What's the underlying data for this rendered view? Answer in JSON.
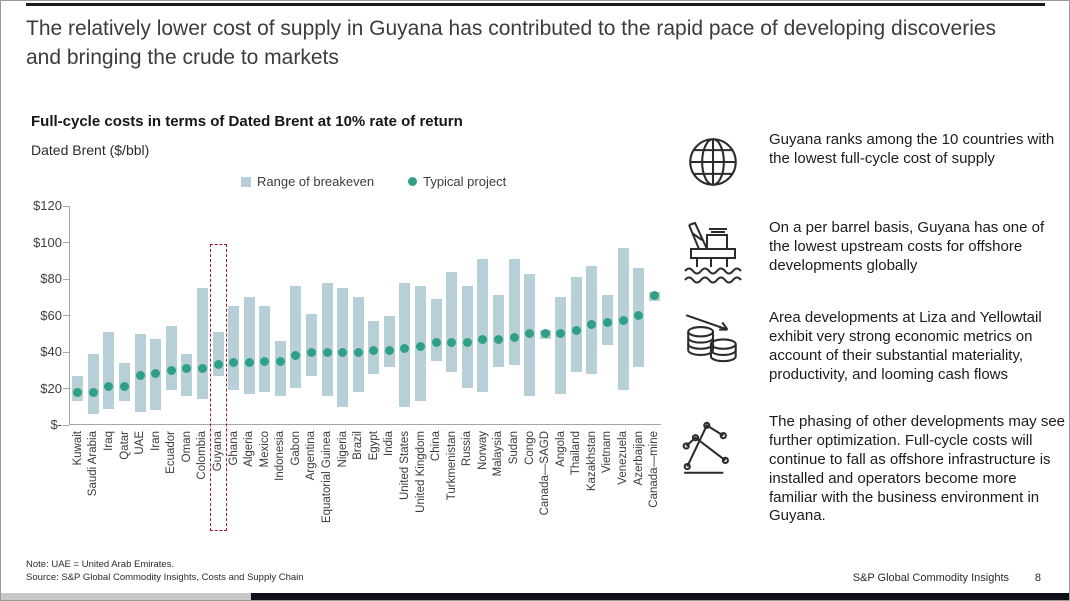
{
  "slide": {
    "title": "The relatively lower cost of supply in Guyana has contributed to the rapid pace of developing discoveries and bringing the crude to markets",
    "footer_note_1": "Note: UAE = United Arab Emirates.",
    "footer_note_2": "Source: S&P Global Commodity Insights, Costs and Supply Chain",
    "footer_brand": "S&P Global Commodity Insights",
    "page_number": "8"
  },
  "chart": {
    "heading": "Full-cycle costs in terms of Dated Brent at 10% rate of return",
    "unit_label": "Dated Brent ($/bbl)",
    "legend": [
      {
        "label": "Range of breakeven",
        "marker": "square",
        "color": "#b7d0d7"
      },
      {
        "label": "Typical project",
        "marker": "dot",
        "color": "#2fa086"
      }
    ]
  },
  "chart_data": {
    "type": "bar",
    "title": "Full-cycle costs in terms of Dated Brent at 10% rate of return",
    "xlabel": "",
    "ylabel": "Dated Brent ($/bbl)",
    "ylim": [
      0,
      120
    ],
    "ytick_values": [
      0,
      20,
      40,
      60,
      80,
      100,
      120
    ],
    "ytick_labels": [
      "$-",
      "$20",
      "$40",
      "$60",
      "$80",
      "$100",
      "$120"
    ],
    "grid": false,
    "legend_position": "top",
    "highlight_category": "Guyana",
    "colors": {
      "bar": "#b7d0d7",
      "point": "#2fa086",
      "highlight_box": "#9c1b33"
    },
    "categories": [
      "Kuwait",
      "Saudi Arabia",
      "Iraq",
      "Qatar",
      "UAE",
      "Iran",
      "Ecuador",
      "Oman",
      "Colombia",
      "Guyana",
      "Ghana",
      "Algeria",
      "Mexico",
      "Indonesia",
      "Gabon",
      "Argentina",
      "Equatorial Guinea",
      "Nigeria",
      "Brazil",
      "Egypt",
      "India",
      "United States",
      "United Kingdom",
      "China",
      "Turkmenistan",
      "Russia",
      "Norway",
      "Malaysia",
      "Sudan",
      "Congo",
      "Canada—SAGD",
      "Angola",
      "Thailand",
      "Kazakhstan",
      "Vietnam",
      "Venezuela",
      "Azerbaijan",
      "Canada—mine"
    ],
    "series": [
      {
        "name": "Range of breakeven",
        "type": "range_bar",
        "low": [
          13,
          6,
          9,
          13,
          7,
          8,
          19,
          16,
          14,
          27,
          19,
          17,
          18,
          16,
          20,
          27,
          16,
          10,
          18,
          28,
          32,
          10,
          13,
          35,
          29,
          20,
          18,
          32,
          33,
          16,
          47,
          17,
          29,
          28,
          44,
          19,
          32,
          68
        ],
        "high": [
          27,
          39,
          51,
          34,
          50,
          47,
          54,
          39,
          75,
          51,
          65,
          70,
          65,
          46,
          76,
          61,
          78,
          75,
          70,
          57,
          60,
          78,
          76,
          69,
          84,
          76,
          91,
          71,
          91,
          83,
          52,
          70,
          81,
          87,
          71,
          97,
          86,
          73
        ]
      },
      {
        "name": "Typical project",
        "type": "point",
        "values": [
          18,
          18,
          21,
          21,
          27,
          28,
          30,
          31,
          31,
          33,
          34,
          34,
          35,
          35,
          38,
          40,
          40,
          40,
          40,
          41,
          41,
          42,
          43,
          45,
          45,
          45,
          47,
          47,
          48,
          50,
          50,
          50,
          52,
          55,
          56,
          57,
          60,
          71
        ]
      }
    ]
  },
  "insights": [
    {
      "icon": "globe-icon",
      "text": "Guyana ranks among the 10 countries with the lowest full-cycle cost of supply"
    },
    {
      "icon": "oil-platform-icon",
      "text": "On a per barrel basis, Guyana has one of the lowest upstream costs for offshore developments globally"
    },
    {
      "icon": "coins-decline-icon",
      "text": "Area developments at Liza and Yellowtail exhibit very strong economic metrics on account of their substantial materiality, productivity, and looming cash flows"
    },
    {
      "icon": "trend-lines-icon",
      "text": "The phasing of other developments may see further optimization. Full-cycle costs will continue to fall as offshore infrastructure is installed and operators become more familiar with the business environment in Guyana."
    }
  ]
}
